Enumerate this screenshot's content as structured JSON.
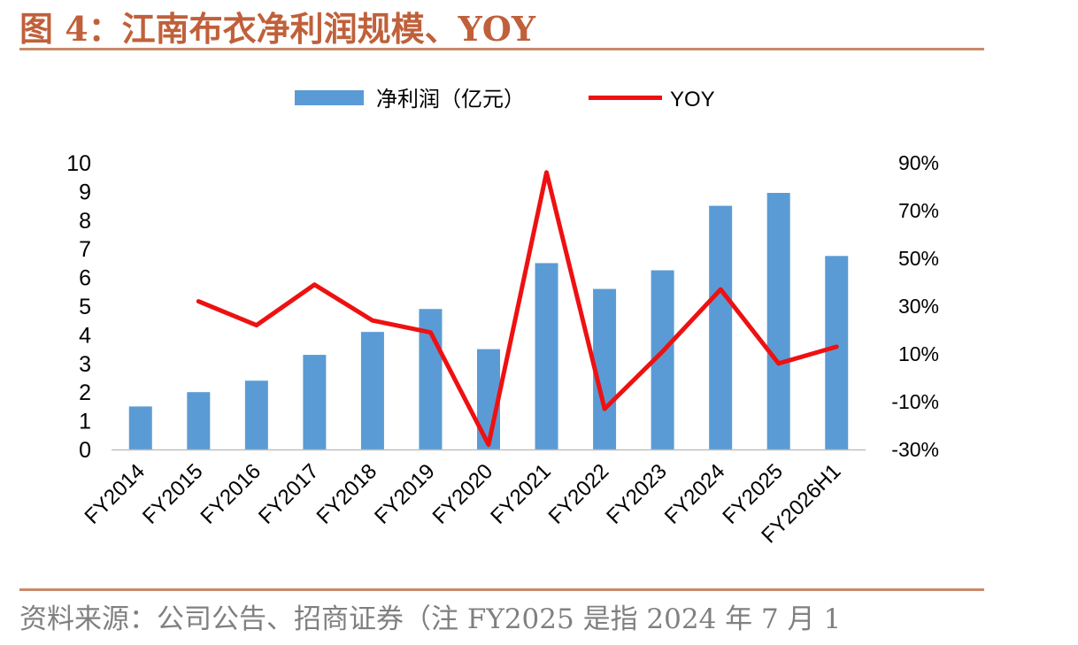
{
  "figure": {
    "title": "图 4：江南布衣净利润规模、YOY",
    "source": "资料来源：公司公告、招商证券（注 FY2025 是指 2024 年 7 月 1"
  },
  "chart_data": {
    "type": "bar+line",
    "categories": [
      "FY2014",
      "FY2015",
      "FY2016",
      "FY2017",
      "FY2018",
      "FY2019",
      "FY2020",
      "FY2021",
      "FY2022",
      "FY2023",
      "FY2024",
      "FY2025",
      "FY2026H1"
    ],
    "series": [
      {
        "name": "净利润（亿元）",
        "type": "bar",
        "axis": "left",
        "color": "#5b9bd5",
        "values": [
          1.5,
          2.0,
          2.4,
          3.3,
          4.1,
          4.9,
          3.5,
          6.5,
          5.6,
          6.25,
          8.5,
          8.95,
          6.75
        ]
      },
      {
        "name": "YOY",
        "type": "line",
        "axis": "right",
        "color": "#ee1111",
        "values": [
          null,
          0.32,
          0.22,
          0.39,
          0.24,
          0.19,
          -0.28,
          0.86,
          -0.13,
          0.11,
          0.37,
          0.06,
          0.13
        ]
      }
    ],
    "y_left": {
      "min": 0,
      "max": 10,
      "ticks": [
        "0",
        "1",
        "2",
        "3",
        "4",
        "5",
        "6",
        "7",
        "8",
        "9",
        "10"
      ]
    },
    "y_right": {
      "min": -0.3,
      "max": 0.9,
      "ticks": [
        "-30%",
        "-10%",
        "10%",
        "30%",
        "50%",
        "70%",
        "90%"
      ]
    },
    "legend": {
      "position": "top"
    },
    "grid": false
  }
}
